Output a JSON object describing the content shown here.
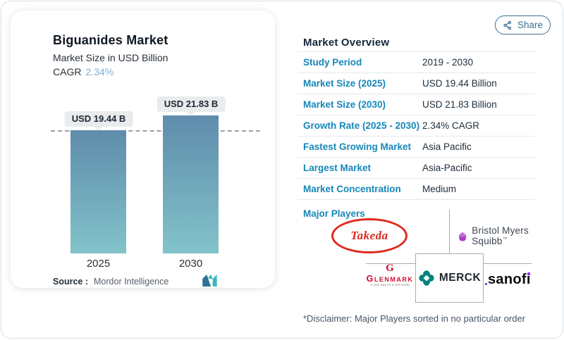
{
  "colors": {
    "label_blue": "#1687ba",
    "value_navy": "#1d2c3a",
    "share_blue": "#3e6f91",
    "cagr_value_blue": "#7fb0d6",
    "reference_line_gray": "#97a1aa",
    "takeda_red": "#e0281e",
    "glenmark_red": "#cc0b2f",
    "merck_teal": "#00857c",
    "bms_purple": "#a93cc9",
    "sanofi_purple": "#8a2be2",
    "mordor_dark": "#2f7294",
    "mordor_teal": "#3ab6bf"
  },
  "share": {
    "label": "Share"
  },
  "left_card": {
    "title": "Biguanides Market",
    "subtitle": "Market Size in USD Billion",
    "cagr_label": "CAGR",
    "cagr_value": "2.34%",
    "source_label": "Source :",
    "source_value": "Mordor Intelligence"
  },
  "chart_data": {
    "type": "bar",
    "title": "Biguanides Market",
    "ylabel": "Market Size in USD Billion",
    "categories": [
      "2025",
      "2030"
    ],
    "values": [
      19.44,
      21.83
    ],
    "value_labels": [
      "USD 19.44 B",
      "USD 21.83 B"
    ],
    "unit": "USD Billion",
    "ylim": [
      0,
      21.83
    ],
    "reference_line": 19.44,
    "grid": false,
    "legend": "none",
    "bar_color_top": "#5f8cac",
    "bar_color_bottom": "#82c3ca"
  },
  "overview": {
    "heading": "Market Overview",
    "rows": [
      {
        "label": "Study Period",
        "value": "2019 - 2030"
      },
      {
        "label": "Market Size (2025)",
        "value": "USD 19.44 Billion"
      },
      {
        "label": "Market Size (2030)",
        "value": "USD 21.83 Billion"
      },
      {
        "label": "Growth Rate (2025 - 2030)",
        "value": "2.34% CAGR"
      },
      {
        "label": "Fastest Growing Market",
        "value": "Asia Pacific"
      },
      {
        "label": "Largest Market",
        "value": "Asia-Pacific"
      },
      {
        "label": "Market Concentration",
        "value": "Medium"
      }
    ],
    "major_players_label": "Major Players",
    "players": [
      "Takeda",
      "Bristol Myers Squibb",
      "Glenmark",
      "MERCK",
      "sanofi"
    ],
    "bms_trademark": "™",
    "glenmark_monogram": "G",
    "glenmark_tagline": "A new way for a new world",
    "sanofi_prefix": "sanof",
    "sanofi_dotless_i": "ı",
    "disclaimer": "*Disclaimer: Major Players sorted in no particular order"
  }
}
